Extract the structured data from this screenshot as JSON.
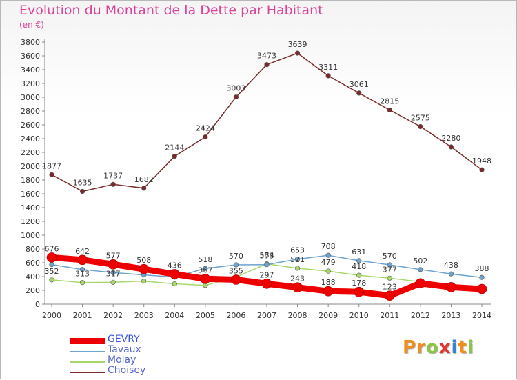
{
  "title": "Evolution du Montant de la Dette par Habitant",
  "unit": "(en €)",
  "logo": {
    "letters": [
      "P",
      "r",
      "o",
      "x",
      "i",
      "t",
      "i"
    ],
    "colors": [
      "#f28c1a",
      "#f28c1a",
      "#8ac640",
      "#e8342c",
      "#2f86d6",
      "#f28c1a",
      "#8ac640"
    ]
  },
  "chart_data": {
    "type": "line",
    "x": [
      "2000",
      "2001",
      "2002",
      "2003",
      "2004",
      "2005",
      "2006",
      "2007",
      "2008",
      "2009",
      "2010",
      "2011",
      "2012",
      "2013",
      "2014"
    ],
    "ylim": [
      0,
      3800
    ],
    "yticks": [
      0,
      200,
      400,
      600,
      800,
      1000,
      1200,
      1400,
      1600,
      1800,
      2000,
      2200,
      2400,
      2600,
      2800,
      3000,
      3200,
      3400,
      3600,
      3800
    ],
    "grid": false,
    "legend_position": "bottom-left",
    "series": [
      {
        "name": "GEVRY",
        "color": "#ee0000",
        "values": [
          676,
          642,
          577,
          508,
          436,
          367,
          355,
          297,
          243,
          188,
          178,
          123,
          302,
          246,
          220
        ],
        "labels": [
          "676",
          "642",
          "577",
          "508",
          "436",
          "367",
          "355",
          "297",
          "243",
          "188",
          "178",
          "123",
          "",
          "",
          ""
        ]
      },
      {
        "name": "Tavaux",
        "color": "#6ea3d0",
        "values": [
          574,
          503,
          457,
          424,
          392,
          518,
          570,
          573,
          653,
          708,
          631,
          570,
          502,
          438,
          388
        ],
        "labels": [
          "",
          "",
          "",
          "",
          "",
          "518",
          "570",
          "573",
          "653",
          "708",
          "631",
          "570",
          "502",
          "438",
          "388"
        ]
      },
      {
        "name": "Molay",
        "color": "#a8d86a",
        "values": [
          352,
          313,
          317,
          334,
          295,
          272,
          393,
          584,
          521,
          479,
          418,
          377,
          324,
          278,
          250
        ],
        "labels": [
          "352",
          "313",
          "317",
          "",
          "",
          "",
          "",
          "584",
          "521",
          "479",
          "418",
          "377",
          "",
          "",
          ""
        ]
      },
      {
        "name": "Choisey",
        "color": "#7a2a2a",
        "values": [
          1877,
          1635,
          1737,
          1682,
          2144,
          2424,
          3003,
          3473,
          3639,
          3311,
          3061,
          2815,
          2575,
          2280,
          1948
        ],
        "labels": [
          "1877",
          "1635",
          "1737",
          "1682",
          "2144",
          "2424",
          "3003",
          "3473",
          "3639",
          "3311",
          "3061",
          "2815",
          "2575",
          "2280",
          "1948"
        ]
      }
    ]
  }
}
